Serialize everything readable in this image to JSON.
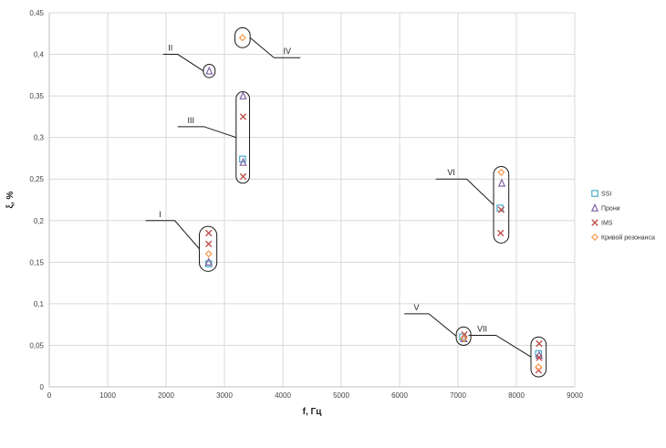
{
  "chart_data": {
    "type": "scatter",
    "xlabel": "f, Гц",
    "ylabel": "ξ, %",
    "xlim": [
      0,
      9000
    ],
    "ylim": [
      0,
      0.45
    ],
    "x_ticks": [
      "0",
      "1000",
      "2000",
      "3000",
      "4000",
      "5000",
      "6000",
      "7000",
      "8000",
      "9000"
    ],
    "y_ticks": [
      "0",
      "0,05",
      "0,1",
      "0,15",
      "0,2",
      "0,25",
      "0,3",
      "0,35",
      "0,4",
      "0,45"
    ],
    "grid": true,
    "legend_position": "right",
    "series": [
      {
        "name": "SSI",
        "marker": "square",
        "color": "#4bacc6",
        "points": [
          [
            2730,
            0.148
          ],
          [
            3310,
            0.274
          ],
          [
            7720,
            0.215
          ],
          [
            7080,
            0.06
          ],
          [
            8380,
            0.04
          ]
        ]
      },
      {
        "name": "Прони",
        "marker": "triangle",
        "color": "#8064a2",
        "points": [
          [
            2730,
            0.15
          ],
          [
            2740,
            0.38
          ],
          [
            3320,
            0.35
          ],
          [
            3320,
            0.27
          ],
          [
            7750,
            0.245
          ],
          [
            7100,
            0.058
          ],
          [
            8390,
            0.038
          ]
        ]
      },
      {
        "name": "IMS",
        "marker": "cross",
        "color": "#c0504d",
        "points": [
          [
            2730,
            0.185
          ],
          [
            2730,
            0.172
          ],
          [
            3320,
            0.325
          ],
          [
            3320,
            0.253
          ],
          [
            7740,
            0.213
          ],
          [
            7730,
            0.185
          ],
          [
            7110,
            0.063
          ],
          [
            8390,
            0.052
          ],
          [
            8390,
            0.035
          ],
          [
            8380,
            0.02
          ]
        ]
      },
      {
        "name": "Кривой резонанса",
        "marker": "diamond",
        "color": "#f79646",
        "points": [
          [
            2730,
            0.16
          ],
          [
            3310,
            0.42
          ],
          [
            7740,
            0.258
          ],
          [
            7100,
            0.058
          ],
          [
            8380,
            0.024
          ]
        ]
      }
    ],
    "annotations": [
      {
        "label": "I",
        "x": [
          2570,
          2870
        ],
        "y": [
          0.139,
          0.193
        ],
        "leader_from": [
          1650,
          0.2
        ],
        "leader_mid": [
          2150,
          0.2
        ]
      },
      {
        "label": "II",
        "x": [
          2640,
          2840
        ],
        "y": [
          0.372,
          0.388
        ],
        "leader_from": [
          1950,
          0.4
        ],
        "leader_mid": [
          2200,
          0.4
        ]
      },
      {
        "label": "III",
        "x": [
          3200,
          3430
        ],
        "y": [
          0.245,
          0.355
        ],
        "leader_from": [
          2200,
          0.313
        ],
        "leader_mid": [
          2650,
          0.313
        ]
      },
      {
        "label": "IV",
        "x": [
          3180,
          3440
        ],
        "y": [
          0.408,
          0.432
        ],
        "leader_from": [
          4300,
          0.396
        ],
        "leader_mid": [
          3850,
          0.396
        ]
      },
      {
        "label": "V",
        "x": [
          6970,
          7220
        ],
        "y": [
          0.05,
          0.072
        ],
        "leader_from": [
          6080,
          0.088
        ],
        "leader_mid": [
          6500,
          0.088
        ]
      },
      {
        "label": "VI",
        "x": [
          7610,
          7870
        ],
        "y": [
          0.173,
          0.265
        ],
        "leader_from": [
          6620,
          0.25
        ],
        "leader_mid": [
          7150,
          0.25
        ]
      },
      {
        "label": "VII",
        "x": [
          8250,
          8510
        ],
        "y": [
          0.012,
          0.06
        ],
        "leader_from": [
          7180,
          0.062
        ],
        "leader_mid": [
          7650,
          0.062
        ]
      }
    ]
  }
}
